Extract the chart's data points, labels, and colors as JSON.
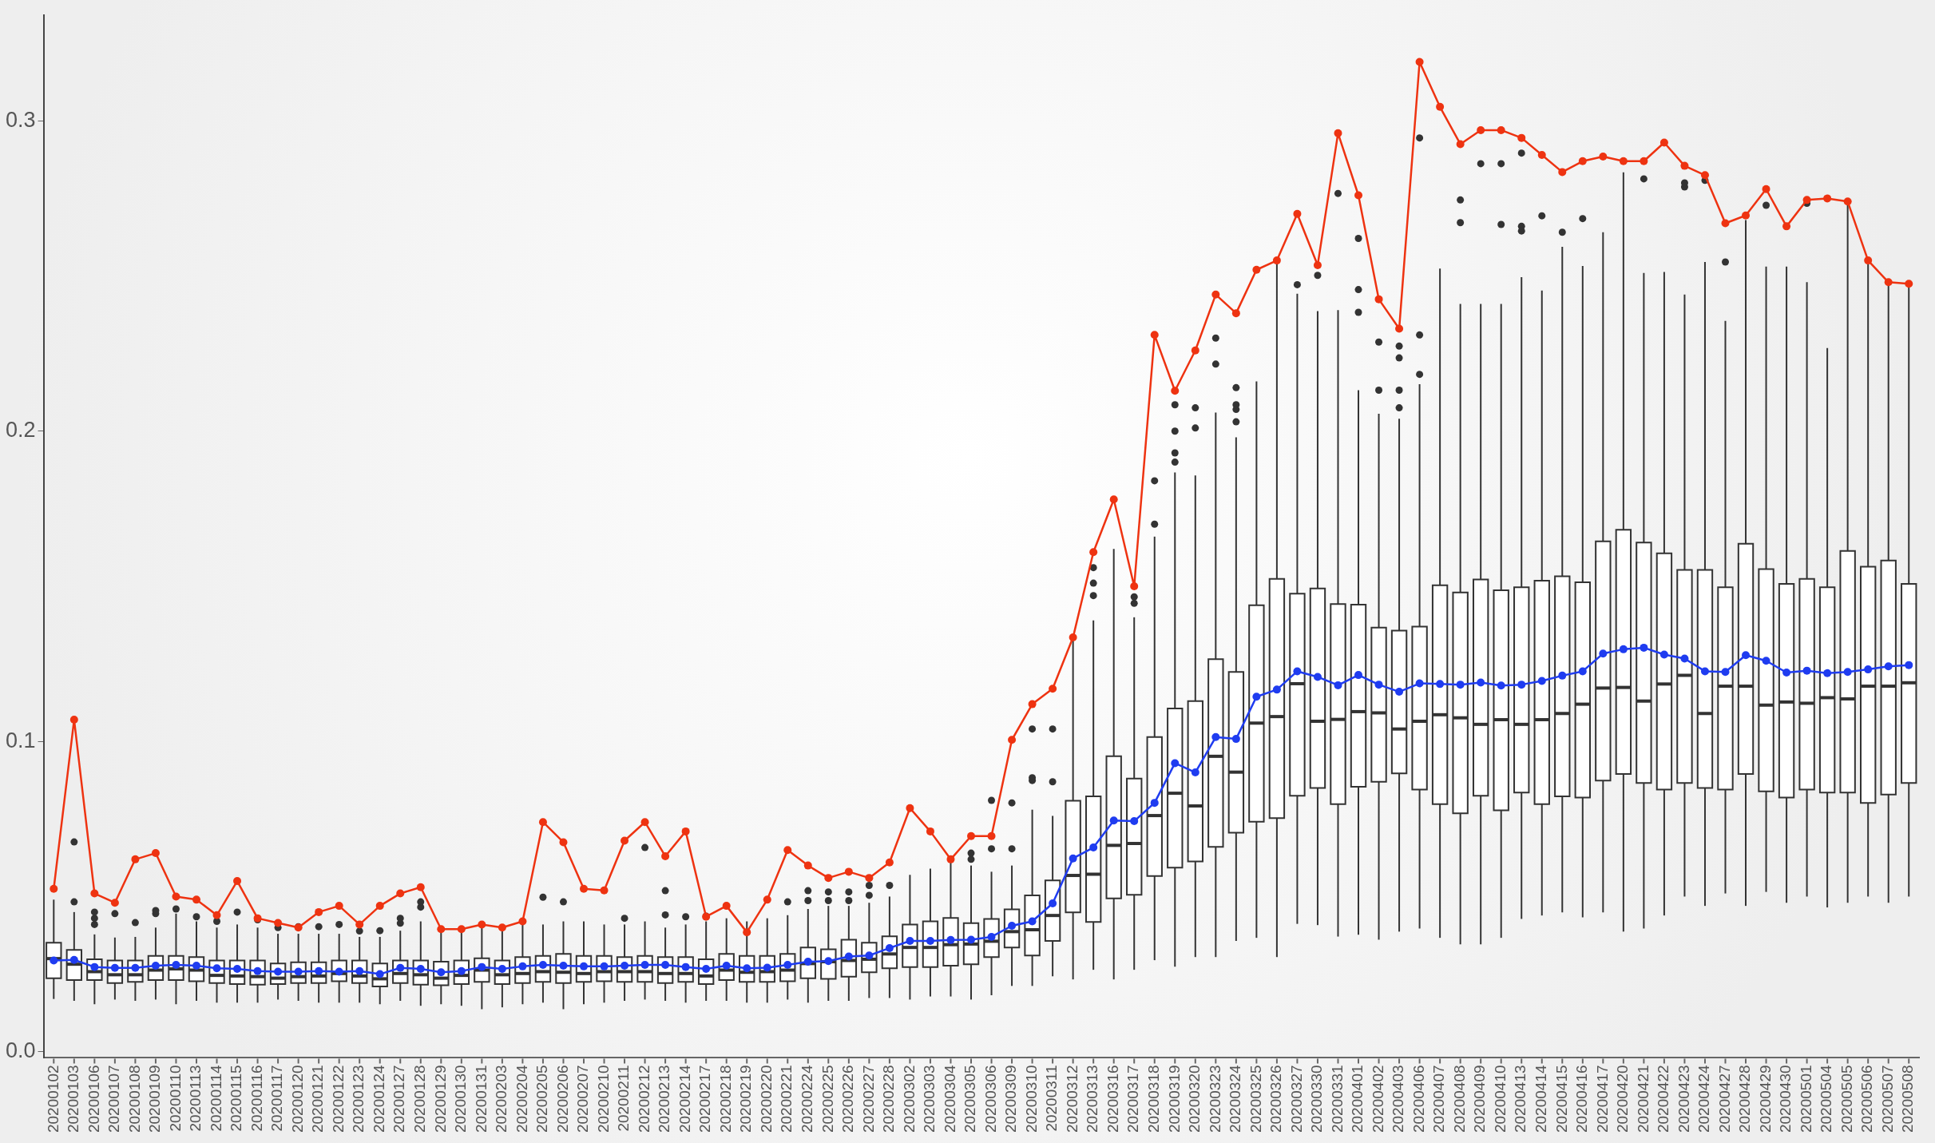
{
  "chart_data": {
    "type": "box",
    "color": "#333333",
    "marker": "circle",
    "line_style": "solid",
    "grid": false,
    "legend": false,
    "categories": [
      "20200102",
      "20200103",
      "20200106",
      "20200107",
      "20200108",
      "20200109",
      "20200110",
      "20200113",
      "20200114",
      "20200115",
      "20200116",
      "20200117",
      "20200120",
      "20200121",
      "20200122",
      "20200123",
      "20200124",
      "20200127",
      "20200128",
      "20200129",
      "20200130",
      "20200131",
      "20200203",
      "20200204",
      "20200205",
      "20200206",
      "20200207",
      "20200210",
      "20200211",
      "20200212",
      "20200213",
      "20200214",
      "20200217",
      "20200218",
      "20200219",
      "20200220",
      "20200221",
      "20200224",
      "20200225",
      "20200226",
      "20200227",
      "20200228",
      "20200302",
      "20200303",
      "20200304",
      "20200305",
      "20200306",
      "20200309",
      "20200310",
      "20200311",
      "20200312",
      "20200313",
      "20200316",
      "20200317",
      "20200318",
      "20200319",
      "20200320",
      "20200323",
      "20200324",
      "20200325",
      "20200326",
      "20200327",
      "20200330",
      "20200331",
      "20200401",
      "20200402",
      "20200403",
      "20200406",
      "20200407",
      "20200408",
      "20200409",
      "20200410",
      "20200413",
      "20200414",
      "20200415",
      "20200416",
      "20200417",
      "20200420",
      "20200421",
      "20200422",
      "20200423",
      "20200424",
      "20200427",
      "20200428",
      "20200429",
      "20200430",
      "20200501",
      "20200504",
      "20200505",
      "20200506",
      "20200507",
      "20200508"
    ],
    "ylim": [
      -0.002,
      0.334
    ],
    "yticks": [
      {
        "value": 0,
        "label": "0.0"
      },
      0.1,
      0.2,
      0.3
    ],
    "boxes": [
      {
        "low": 0.017,
        "q1": 0.0237,
        "median": 0.03,
        "q3": 0.0351,
        "high": 0.049
      },
      {
        "low": 0.0164,
        "q1": 0.0231,
        "median": 0.0282,
        "q3": 0.0328,
        "high": 0.045,
        "outliers": [
          0.0483,
          0.0676
        ]
      },
      {
        "low": 0.0153,
        "q1": 0.0231,
        "median": 0.0258,
        "q3": 0.0298,
        "high": 0.0378,
        "outliers": [
          0.041,
          0.043,
          0.045
        ]
      },
      {
        "low": 0.0168,
        "q1": 0.0221,
        "median": 0.0248,
        "q3": 0.0294,
        "high": 0.0368,
        "outliers": [
          0.0445
        ]
      },
      {
        "low": 0.0164,
        "q1": 0.0225,
        "median": 0.0248,
        "q3": 0.0294,
        "high": 0.037,
        "outliers": [
          0.0416
        ]
      },
      {
        "low": 0.0168,
        "q1": 0.0231,
        "median": 0.0263,
        "q3": 0.0309,
        "high": 0.04,
        "outliers": [
          0.0445,
          0.0455
        ]
      },
      {
        "low": 0.0153,
        "q1": 0.0231,
        "median": 0.0267,
        "q3": 0.0309,
        "high": 0.0445,
        "outliers": [
          0.046
        ]
      },
      {
        "low": 0.0164,
        "q1": 0.0227,
        "median": 0.0263,
        "q3": 0.0305,
        "high": 0.042,
        "outliers": [
          0.0435
        ]
      },
      {
        "low": 0.0158,
        "q1": 0.0221,
        "median": 0.0246,
        "q3": 0.0294,
        "high": 0.04,
        "outliers": [
          0.042
        ]
      },
      {
        "low": 0.0158,
        "q1": 0.0218,
        "median": 0.0244,
        "q3": 0.0294,
        "high": 0.041,
        "outliers": [
          0.045
        ]
      },
      {
        "low": 0.0158,
        "q1": 0.0216,
        "median": 0.0242,
        "q3": 0.0294,
        "high": 0.04,
        "outliers": [
          0.0425
        ]
      },
      {
        "low": 0.0168,
        "q1": 0.0218,
        "median": 0.0237,
        "q3": 0.0284,
        "high": 0.038,
        "outliers": [
          0.04
        ]
      },
      {
        "low": 0.0164,
        "q1": 0.0221,
        "median": 0.0242,
        "q3": 0.0288,
        "high": 0.038,
        "outliers": [
          0.0403
        ]
      },
      {
        "low": 0.0158,
        "q1": 0.0221,
        "median": 0.0244,
        "q3": 0.0288,
        "high": 0.038,
        "outliers": [
          0.0403
        ]
      },
      {
        "low": 0.0158,
        "q1": 0.0227,
        "median": 0.0252,
        "q3": 0.0294,
        "high": 0.038,
        "outliers": [
          0.041
        ]
      },
      {
        "low": 0.0158,
        "q1": 0.0221,
        "median": 0.0244,
        "q3": 0.0294,
        "high": 0.037,
        "outliers": [
          0.0389
        ]
      },
      {
        "low": 0.0153,
        "q1": 0.021,
        "median": 0.0235,
        "q3": 0.0284,
        "high": 0.037,
        "outliers": [
          0.039
        ]
      },
      {
        "low": 0.0164,
        "q1": 0.0221,
        "median": 0.0252,
        "q3": 0.0294,
        "high": 0.039,
        "outliers": [
          0.0414,
          0.043
        ]
      },
      {
        "low": 0.0148,
        "q1": 0.0216,
        "median": 0.0248,
        "q3": 0.0294,
        "high": 0.042,
        "outliers": [
          0.0466,
          0.0483
        ]
      },
      {
        "low": 0.0153,
        "q1": 0.0214,
        "median": 0.0237,
        "q3": 0.029,
        "high": 0.04
      },
      {
        "low": 0.0148,
        "q1": 0.0218,
        "median": 0.0246,
        "q3": 0.0294,
        "high": 0.04
      },
      {
        "low": 0.0137,
        "q1": 0.0225,
        "median": 0.0263,
        "q3": 0.0301,
        "high": 0.041
      },
      {
        "low": 0.0143,
        "q1": 0.0218,
        "median": 0.0248,
        "q3": 0.0294,
        "high": 0.041
      },
      {
        "low": 0.0153,
        "q1": 0.0221,
        "median": 0.0252,
        "q3": 0.0305,
        "high": 0.042
      },
      {
        "low": 0.0158,
        "q1": 0.0225,
        "median": 0.0258,
        "q3": 0.0309,
        "high": 0.041,
        "outliers": [
          0.0498
        ]
      },
      {
        "low": 0.0137,
        "q1": 0.0221,
        "median": 0.0256,
        "q3": 0.0315,
        "high": 0.042,
        "outliers": [
          0.0483
        ]
      },
      {
        "low": 0.0153,
        "q1": 0.0225,
        "median": 0.0252,
        "q3": 0.0309,
        "high": 0.042
      },
      {
        "low": 0.0158,
        "q1": 0.0227,
        "median": 0.0258,
        "q3": 0.0309,
        "high": 0.041
      },
      {
        "low": 0.0164,
        "q1": 0.0225,
        "median": 0.0258,
        "q3": 0.0305,
        "high": 0.041,
        "outliers": [
          0.043
        ]
      },
      {
        "low": 0.0168,
        "q1": 0.0225,
        "median": 0.0258,
        "q3": 0.0309,
        "high": 0.042,
        "outliers": [
          0.0658
        ]
      },
      {
        "low": 0.0164,
        "q1": 0.0221,
        "median": 0.0252,
        "q3": 0.0305,
        "high": 0.04,
        "outliers": [
          0.0441,
          0.0519
        ]
      },
      {
        "low": 0.0158,
        "q1": 0.0225,
        "median": 0.0252,
        "q3": 0.0305,
        "high": 0.041,
        "outliers": [
          0.0435
        ]
      },
      {
        "low": 0.0164,
        "q1": 0.0218,
        "median": 0.0244,
        "q3": 0.0298,
        "high": 0.042,
        "outliers": [
          0.0437
        ]
      },
      {
        "low": 0.0164,
        "q1": 0.0231,
        "median": 0.0263,
        "q3": 0.0315,
        "high": 0.043
      },
      {
        "low": 0.0158,
        "q1": 0.0225,
        "median": 0.0256,
        "q3": 0.0309,
        "high": 0.042
      },
      {
        "low": 0.0158,
        "q1": 0.0225,
        "median": 0.0258,
        "q3": 0.0309,
        "high": 0.043
      },
      {
        "low": 0.0168,
        "q1": 0.0227,
        "median": 0.0263,
        "q3": 0.0315,
        "high": 0.044,
        "outliers": [
          0.0483
        ]
      },
      {
        "low": 0.0158,
        "q1": 0.0237,
        "median": 0.0284,
        "q3": 0.0336,
        "high": 0.046,
        "outliers": [
          0.0487,
          0.0519
        ]
      },
      {
        "low": 0.0164,
        "q1": 0.0235,
        "median": 0.029,
        "q3": 0.033,
        "high": 0.047,
        "outliers": [
          0.0487,
          0.0515
        ]
      },
      {
        "low": 0.0164,
        "q1": 0.0242,
        "median": 0.0294,
        "q3": 0.0361,
        "high": 0.047,
        "outliers": [
          0.0487,
          0.0515
        ]
      },
      {
        "low": 0.0173,
        "q1": 0.0256,
        "median": 0.0298,
        "q3": 0.0351,
        "high": 0.048,
        "outliers": [
          0.0504,
          0.0536
        ]
      },
      {
        "low": 0.0173,
        "q1": 0.0269,
        "median": 0.0315,
        "q3": 0.0372,
        "high": 0.05,
        "outliers": [
          0.0536
        ]
      },
      {
        "low": 0.0168,
        "q1": 0.0273,
        "median": 0.0336,
        "q3": 0.041,
        "high": 0.057
      },
      {
        "low": 0.0178,
        "q1": 0.0273,
        "median": 0.0336,
        "q3": 0.042,
        "high": 0.059
      },
      {
        "low": 0.0178,
        "q1": 0.0277,
        "median": 0.0345,
        "q3": 0.0431,
        "high": 0.063
      },
      {
        "low": 0.0168,
        "q1": 0.0282,
        "median": 0.0347,
        "q3": 0.0414,
        "high": 0.06,
        "outliers": [
          0.062,
          0.064
        ]
      },
      {
        "low": 0.0182,
        "q1": 0.0305,
        "median": 0.0356,
        "q3": 0.0428,
        "high": 0.058,
        "outliers": [
          0.0654,
          0.081
        ]
      },
      {
        "low": 0.0212,
        "q1": 0.0336,
        "median": 0.0387,
        "q3": 0.0459,
        "high": 0.06,
        "outliers": [
          0.0654,
          0.0802
        ]
      },
      {
        "low": 0.0212,
        "q1": 0.031,
        "median": 0.0393,
        "q3": 0.0504,
        "high": 0.078,
        "outliers": [
          0.0874,
          0.0883,
          0.104
        ]
      },
      {
        "low": 0.0243,
        "q1": 0.0357,
        "median": 0.0439,
        "q3": 0.0552,
        "high": 0.076,
        "outliers": [
          0.087,
          0.104
        ]
      },
      {
        "low": 0.0233,
        "q1": 0.0449,
        "median": 0.0568,
        "q3": 0.0809,
        "high": 0.133
      },
      {
        "low": 0.0264,
        "q1": 0.0418,
        "median": 0.0572,
        "q3": 0.0823,
        "high": 0.139,
        "outliers": [
          0.147,
          0.151,
          0.156
        ]
      },
      {
        "low": 0.0233,
        "q1": 0.0494,
        "median": 0.0665,
        "q3": 0.0952,
        "high": 0.162
      },
      {
        "low": 0.0264,
        "q1": 0.0506,
        "median": 0.0671,
        "q3": 0.088,
        "high": 0.14,
        "outliers": [
          0.1445,
          0.1466
        ]
      },
      {
        "low": 0.0295,
        "q1": 0.0566,
        "median": 0.0761,
        "q3": 0.1014,
        "high": 0.166,
        "outliers": [
          0.17,
          0.184
        ]
      },
      {
        "low": 0.0274,
        "q1": 0.0593,
        "median": 0.0833,
        "q3": 0.1106,
        "high": 0.1867,
        "outliers": [
          0.19,
          0.193,
          0.2,
          0.2085
        ]
      },
      {
        "low": 0.0305,
        "q1": 0.0613,
        "median": 0.0792,
        "q3": 0.113,
        "high": 0.1857,
        "outliers": [
          0.201,
          0.2075
        ]
      },
      {
        "low": 0.0305,
        "q1": 0.066,
        "median": 0.0952,
        "q3": 0.1265,
        "high": 0.206,
        "outliers": [
          0.2216,
          0.23
        ]
      },
      {
        "low": 0.0357,
        "q1": 0.0706,
        "median": 0.0901,
        "q3": 0.1224,
        "high": 0.198,
        "outliers": [
          0.203,
          0.207,
          0.2085,
          0.214
        ]
      },
      {
        "low": 0.0367,
        "q1": 0.0741,
        "median": 0.1059,
        "q3": 0.1439,
        "high": 0.216
      },
      {
        "low": 0.0305,
        "q1": 0.0753,
        "median": 0.108,
        "q3": 0.1524,
        "high": 0.254
      },
      {
        "low": 0.0412,
        "q1": 0.0825,
        "median": 0.1186,
        "q3": 0.1476,
        "high": 0.2443,
        "outliers": [
          0.2472
        ]
      },
      {
        "low": 0.0408,
        "q1": 0.085,
        "median": 0.1065,
        "q3": 0.1493,
        "high": 0.2387,
        "outliers": [
          0.2502
        ]
      },
      {
        "low": 0.0371,
        "q1": 0.0798,
        "median": 0.1071,
        "q3": 0.1443,
        "high": 0.239,
        "outliers": [
          0.2766
        ]
      },
      {
        "low": 0.0377,
        "q1": 0.0854,
        "median": 0.1096,
        "q3": 0.1441,
        "high": 0.2132,
        "outliers": [
          0.2383,
          0.2456,
          0.2621
        ]
      },
      {
        "low": 0.0361,
        "q1": 0.087,
        "median": 0.1092,
        "q3": 0.1367,
        "high": 0.2056,
        "outliers": [
          0.2132,
          0.2287
        ]
      },
      {
        "low": 0.0387,
        "q1": 0.0897,
        "median": 0.104,
        "q3": 0.1357,
        "high": 0.204,
        "outliers": [
          0.2075,
          0.2132,
          0.2236,
          0.2274
        ]
      },
      {
        "low": 0.0397,
        "q1": 0.0845,
        "median": 0.1065,
        "q3": 0.137,
        "high": 0.2151,
        "outliers": [
          0.2183,
          0.231,
          0.2945
        ]
      },
      {
        "low": 0.0367,
        "q1": 0.0798,
        "median": 0.1086,
        "q3": 0.1503,
        "high": 0.2524
      },
      {
        "low": 0.0346,
        "q1": 0.0768,
        "median": 0.1076,
        "q3": 0.148,
        "high": 0.241,
        "outliers": [
          0.2672,
          0.2745
        ]
      },
      {
        "low": 0.0346,
        "q1": 0.0825,
        "median": 0.1055,
        "q3": 0.1522,
        "high": 0.241,
        "outliers": [
          0.2862
        ]
      },
      {
        "low": 0.0367,
        "q1": 0.0778,
        "median": 0.107,
        "q3": 0.1487,
        "high": 0.241,
        "outliers": [
          0.2666,
          0.2862
        ]
      },
      {
        "low": 0.0428,
        "q1": 0.0835,
        "median": 0.1055,
        "q3": 0.1497,
        "high": 0.2496,
        "outliers": [
          0.2645,
          0.266,
          0.2896
        ]
      },
      {
        "low": 0.0439,
        "q1": 0.0798,
        "median": 0.107,
        "q3": 0.1518,
        "high": 0.2453,
        "outliers": [
          0.2694
        ]
      },
      {
        "low": 0.0449,
        "q1": 0.0823,
        "median": 0.109,
        "q3": 0.1532,
        "high": 0.2594,
        "outliers": [
          0.2641
        ]
      },
      {
        "low": 0.0433,
        "q1": 0.0819,
        "median": 0.112,
        "q3": 0.1513,
        "high": 0.2532,
        "outliers": [
          0.2685
        ]
      },
      {
        "low": 0.0449,
        "q1": 0.0874,
        "median": 0.1172,
        "q3": 0.1645,
        "high": 0.2641
      },
      {
        "low": 0.0387,
        "q1": 0.0895,
        "median": 0.1174,
        "q3": 0.1682,
        "high": 0.2834
      },
      {
        "low": 0.0397,
        "q1": 0.0866,
        "median": 0.113,
        "q3": 0.1641,
        "high": 0.251,
        "outliers": [
          0.2813
        ]
      },
      {
        "low": 0.0439,
        "q1": 0.0845,
        "median": 0.1185,
        "q3": 0.1606,
        "high": 0.2513
      },
      {
        "low": 0.05,
        "q1": 0.0866,
        "median": 0.1213,
        "q3": 0.1553,
        "high": 0.244,
        "outliers": [
          0.2787,
          0.28
        ]
      },
      {
        "low": 0.047,
        "q1": 0.085,
        "median": 0.109,
        "q3": 0.1553,
        "high": 0.2545,
        "outliers": [
          0.2808
        ]
      },
      {
        "low": 0.051,
        "q1": 0.0845,
        "median": 0.1178,
        "q3": 0.1497,
        "high": 0.2355,
        "outliers": [
          0.2545
        ]
      },
      {
        "low": 0.047,
        "q1": 0.0895,
        "median": 0.1178,
        "q3": 0.1637,
        "high": 0.268
      },
      {
        "low": 0.0515,
        "q1": 0.0839,
        "median": 0.1117,
        "q3": 0.1555,
        "high": 0.253,
        "outliers": [
          0.2728
        ]
      },
      {
        "low": 0.048,
        "q1": 0.0819,
        "median": 0.1127,
        "q3": 0.1508,
        "high": 0.253
      },
      {
        "low": 0.05,
        "q1": 0.0845,
        "median": 0.1123,
        "q3": 0.1524,
        "high": 0.248,
        "outliers": [
          0.2734
        ]
      },
      {
        "low": 0.0465,
        "q1": 0.0835,
        "median": 0.1141,
        "q3": 0.1497,
        "high": 0.2268
      },
      {
        "low": 0.048,
        "q1": 0.0835,
        "median": 0.1137,
        "q3": 0.1614,
        "high": 0.273
      },
      {
        "low": 0.05,
        "q1": 0.0802,
        "median": 0.1178,
        "q3": 0.1563,
        "high": 0.2538
      },
      {
        "low": 0.048,
        "q1": 0.0829,
        "median": 0.1178,
        "q3": 0.1583,
        "high": 0.248
      },
      {
        "low": 0.05,
        "q1": 0.0866,
        "median": 0.1189,
        "q3": 0.1508,
        "high": 0.2472
      }
    ],
    "series": [
      {
        "type": "line",
        "color": "#ee3311",
        "values": [
          0.0525,
          0.107,
          0.051,
          0.048,
          0.062,
          0.064,
          0.05,
          0.049,
          0.044,
          0.055,
          0.043,
          0.0415,
          0.04,
          0.045,
          0.047,
          0.041,
          0.047,
          0.051,
          0.053,
          0.0395,
          0.0395,
          0.041,
          0.04,
          0.042,
          0.074,
          0.0675,
          0.0525,
          0.052,
          0.068,
          0.074,
          0.063,
          0.071,
          0.0435,
          0.047,
          0.0385,
          0.049,
          0.065,
          0.06,
          0.056,
          0.058,
          0.056,
          0.061,
          0.0785,
          0.071,
          0.062,
          0.0695,
          0.0695,
          0.1005,
          0.112,
          0.117,
          0.1335,
          0.161,
          0.178,
          0.15,
          0.231,
          0.213,
          0.226,
          0.244,
          0.238,
          0.252,
          0.255,
          0.27,
          0.2535,
          0.296,
          0.276,
          0.2425,
          0.233,
          0.319,
          0.3045,
          0.2925,
          0.297,
          0.297,
          0.2945,
          0.289,
          0.2835,
          0.287,
          0.2885,
          0.287,
          0.287,
          0.293,
          0.2855,
          0.2825,
          0.267,
          0.2695,
          0.278,
          0.266,
          0.2745,
          0.275,
          0.274,
          0.255,
          0.248,
          0.2475
        ]
      },
      {
        "type": "line",
        "color": "#1f3cf0",
        "values": [
          0.0294,
          0.0296,
          0.0273,
          0.027,
          0.027,
          0.0277,
          0.028,
          0.0277,
          0.0269,
          0.0267,
          0.026,
          0.0258,
          0.0258,
          0.026,
          0.0258,
          0.026,
          0.025,
          0.027,
          0.0267,
          0.0256,
          0.026,
          0.0273,
          0.0267,
          0.0275,
          0.028,
          0.0277,
          0.0275,
          0.0275,
          0.0277,
          0.028,
          0.028,
          0.0273,
          0.0267,
          0.0277,
          0.0269,
          0.0271,
          0.028,
          0.029,
          0.0292,
          0.0307,
          0.031,
          0.0334,
          0.0357,
          0.0357,
          0.036,
          0.0361,
          0.037,
          0.0406,
          0.042,
          0.0478,
          0.0623,
          0.0658,
          0.0745,
          0.0743,
          0.0802,
          0.093,
          0.09,
          0.1014,
          0.1008,
          0.1144,
          0.1167,
          0.1226,
          0.1208,
          0.1181,
          0.1214,
          0.1183,
          0.116,
          0.1187,
          0.1185,
          0.1183,
          0.119,
          0.118,
          0.1183,
          0.1195,
          0.1212,
          0.1226,
          0.1283,
          0.1297,
          0.1302,
          0.128,
          0.1267,
          0.1226,
          0.1224,
          0.1278,
          0.126,
          0.1222,
          0.1228,
          0.122,
          0.1224,
          0.1232,
          0.1242,
          0.1246
        ]
      }
    ]
  }
}
